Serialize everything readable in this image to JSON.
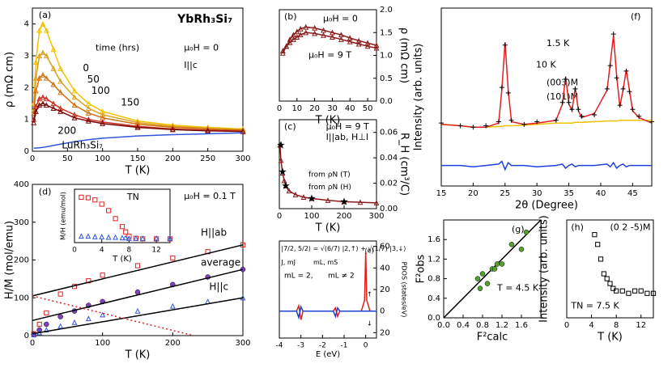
{
  "chart_data": [
    {
      "type": "line",
      "title": "YbRh₃Si₇",
      "xlabel": "T (K)",
      "ylabel": "ρ (mΩ cm)",
      "xlim": [
        0,
        300
      ],
      "ylim": [
        0,
        4.5
      ],
      "xticks": [
        0,
        50,
        100,
        150,
        200,
        250,
        300
      ],
      "yticks": [
        0,
        1,
        2,
        3,
        4
      ],
      "annotations": [
        "(a)",
        "time (hrs)",
        "μ₀H = 0",
        "I||c"
      ],
      "x": [
        2,
        5,
        10,
        15,
        20,
        30,
        40,
        60,
        80,
        100,
        150,
        200,
        250,
        300
      ],
      "series": [
        {
          "name": "0",
          "color": "#f2c200",
          "style": "line+markers",
          "marker": "triangle",
          "values": [
            1.5,
            2.8,
            3.8,
            4.0,
            3.8,
            3.2,
            2.6,
            1.9,
            1.5,
            1.25,
            0.95,
            0.82,
            0.75,
            0.7
          ]
        },
        {
          "name": "50",
          "color": "#d9a020",
          "style": "line+markers",
          "marker": "triangle",
          "values": [
            1.3,
            2.3,
            3.0,
            3.1,
            3.0,
            2.6,
            2.2,
            1.7,
            1.35,
            1.15,
            0.9,
            0.78,
            0.72,
            0.68
          ]
        },
        {
          "name": "100",
          "color": "#d07010",
          "style": "line+markers",
          "marker": "triangle",
          "values": [
            1.2,
            1.9,
            2.3,
            2.4,
            2.3,
            2.1,
            1.85,
            1.45,
            1.2,
            1.05,
            0.85,
            0.75,
            0.7,
            0.66
          ]
        },
        {
          "name": "150",
          "color": "#c83020",
          "style": "line+markers",
          "marker": "triangle",
          "values": [
            1.0,
            1.4,
            1.65,
            1.7,
            1.65,
            1.5,
            1.35,
            1.15,
            1.0,
            0.92,
            0.78,
            0.7,
            0.66,
            0.63
          ]
        },
        {
          "name": "200",
          "color": "#7a0a0a",
          "style": "line+markers",
          "marker": "triangle",
          "values": [
            0.9,
            1.25,
            1.45,
            1.5,
            1.45,
            1.35,
            1.25,
            1.05,
            0.95,
            0.87,
            0.75,
            0.68,
            0.64,
            0.62
          ]
        },
        {
          "name": "LuRh₃Si₇",
          "color": "#3355dd",
          "style": "line",
          "values": [
            0.1,
            0.1,
            0.11,
            0.12,
            0.14,
            0.18,
            0.22,
            0.3,
            0.36,
            0.41,
            0.48,
            0.52,
            0.55,
            0.58
          ]
        }
      ]
    },
    {
      "type": "line",
      "xlabel": "T (K)",
      "ylabel": "ρ (mΩ cm)",
      "y_axis_side": "right",
      "xlim": [
        0,
        55
      ],
      "ylim": [
        0,
        2.0
      ],
      "xticks": [
        0,
        10,
        20,
        30,
        40,
        50
      ],
      "yticks": [
        {
          "value": 0,
          "label": "0.0"
        },
        0.5,
        {
          "value": 1,
          "label": "1.0"
        },
        1.5,
        {
          "value": 2,
          "label": "2.0"
        }
      ],
      "annotations": [
        "(b)",
        "μ₀H = 0",
        "μ₀H = 9 T"
      ],
      "x": [
        2,
        4,
        6,
        8,
        10,
        12,
        15,
        20,
        25,
        30,
        35,
        40,
        45,
        50,
        55
      ],
      "series": [
        {
          "color": "#8b1a1a",
          "style": "line+markers",
          "marker": "triangle",
          "values": [
            1.05,
            1.2,
            1.35,
            1.45,
            1.52,
            1.58,
            1.62,
            1.6,
            1.55,
            1.5,
            1.45,
            1.38,
            1.32,
            1.27,
            1.22
          ]
        },
        {
          "color": "#8b1a1a",
          "style": "line+markers",
          "marker": "triangle",
          "values": [
            1.1,
            1.2,
            1.28,
            1.35,
            1.4,
            1.45,
            1.5,
            1.48,
            1.44,
            1.4,
            1.35,
            1.3,
            1.25,
            1.2,
            1.16
          ]
        }
      ]
    },
    {
      "type": "line",
      "xlabel": "T (K)",
      "ylabel": "R_H (cm³/C)",
      "y_axis_side": "right",
      "xlim": [
        0,
        300
      ],
      "ylim": [
        0,
        0.07
      ],
      "xticks": [
        0,
        100,
        200,
        300
      ],
      "yticks": [
        {
          "value": 0,
          "label": "0.00"
        },
        0.02,
        0.04,
        0.06
      ],
      "annotations": [
        "(c)",
        "μ₀H = 9 T",
        "I||ab, H⊥I"
      ],
      "series": [
        {
          "name": "from ρN (T)",
          "color": "#8b1a1a",
          "style": "line+markers",
          "marker": "triangle",
          "x": [
            2,
            5,
            10,
            15,
            20,
            30,
            50,
            75,
            100,
            150,
            200,
            250,
            300
          ],
          "values": [
            0.05,
            0.038,
            0.028,
            0.022,
            0.018,
            0.014,
            0.011,
            0.009,
            0.008,
            0.0065,
            0.0055,
            0.005,
            0.0045
          ]
        },
        {
          "name": "from ρN (H)",
          "color": "#000000",
          "style": "markers",
          "marker": "star",
          "x": [
            5,
            10,
            20,
            100,
            200
          ],
          "values": [
            0.05,
            0.029,
            0.018,
            0.008,
            0.0055
          ]
        }
      ]
    },
    {
      "type": "line",
      "xlabel": "T (K)",
      "ylabel": "H/M (mol/emu)",
      "xlim": [
        0,
        300
      ],
      "ylim": [
        0,
        400
      ],
      "xticks": [
        0,
        100,
        200,
        300
      ],
      "yticks": [
        0,
        100,
        200,
        300,
        400
      ],
      "annotations": [
        "(d)",
        "μ₀H = 0.1 T"
      ],
      "series": [
        {
          "name": "H||ab",
          "color": "#e02020",
          "style": "markers",
          "marker": "square",
          "x": [
            2,
            10,
            20,
            40,
            60,
            80,
            100,
            150,
            200,
            250,
            300
          ],
          "values": [
            5,
            30,
            60,
            110,
            130,
            145,
            160,
            185,
            205,
            222,
            240
          ]
        },
        {
          "name": "average",
          "color": "#8040c0",
          "style": "markers",
          "marker": "circle",
          "x": [
            2,
            10,
            20,
            40,
            60,
            80,
            100,
            150,
            200,
            250,
            300
          ],
          "values": [
            3,
            15,
            30,
            50,
            65,
            80,
            90,
            115,
            135,
            155,
            175
          ]
        },
        {
          "name": "H||c",
          "color": "#3355dd",
          "style": "markers",
          "marker": "triangle",
          "x": [
            2,
            10,
            20,
            40,
            60,
            80,
            100,
            150,
            200,
            250,
            300
          ],
          "values": [
            2,
            8,
            15,
            25,
            35,
            45,
            55,
            65,
            78,
            90,
            100
          ]
        },
        {
          "color": "#000000",
          "style": "line",
          "x": [
            0,
            300
          ],
          "values": [
            105,
            240
          ]
        },
        {
          "color": "#000000",
          "style": "line",
          "x": [
            0,
            300
          ],
          "values": [
            40,
            175
          ]
        },
        {
          "color": "#000000",
          "style": "line",
          "x": [
            0,
            300
          ],
          "values": [
            5,
            100
          ]
        },
        {
          "color": "#e02020",
          "style": "line",
          "dash": true,
          "x": [
            0,
            230
          ],
          "values": [
            105,
            0
          ]
        }
      ]
    },
    {
      "type": "line",
      "xlabel": "T (K)",
      "ylabel": "M/H (emu/mol)",
      "xlim": [
        0,
        14
      ],
      "ylim": [
        0,
        1
      ],
      "xticks": [
        0,
        4,
        8,
        12
      ],
      "annotations": [
        "TN"
      ],
      "x": [
        1,
        2,
        3,
        4,
        5,
        6,
        7,
        7.5,
        8,
        9,
        10,
        12,
        14
      ],
      "series": [
        {
          "color": "#e02020",
          "style": "markers",
          "marker": "square",
          "values": [
            0.85,
            0.84,
            0.8,
            0.72,
            0.6,
            0.45,
            0.3,
            0.2,
            0.12,
            0.08,
            0.07,
            0.07,
            0.07
          ]
        },
        {
          "color": "#3355dd",
          "style": "markers",
          "marker": "triangle",
          "values": [
            0.12,
            0.12,
            0.11,
            0.11,
            0.1,
            0.1,
            0.09,
            0.09,
            0.08,
            0.08,
            0.08,
            0.08,
            0.08
          ]
        }
      ]
    },
    {
      "type": "line",
      "xlabel": "E (eV)",
      "ylabel": "PDOS (states/eV)",
      "y_axis_side": "right",
      "xlim": [
        -4,
        0.5
      ],
      "ylim": [
        -25,
        65
      ],
      "xticks": [
        -4,
        -3,
        -2,
        -1,
        0
      ],
      "yticks": [
        {
          "value": -20,
          "label": "20"
        },
        0,
        20,
        40,
        60
      ],
      "annotations": [
        "(e)",
        "|7/2, 5/2⟩ = √(6/7) |2,↑⟩ + √(1/7) |3,↓⟩",
        "J, mJ",
        "mL, mS",
        "↑",
        "↓"
      ],
      "x": [
        -4,
        -3.2,
        -3.1,
        -3,
        -2.9,
        -2,
        -1.5,
        -1.4,
        -1.3,
        -1.2,
        -1,
        -0.2,
        -0.05,
        0,
        0.05,
        0.2,
        0.5
      ],
      "series": [
        {
          "name": "mL = 2,",
          "color": "#e02020",
          "style": "line",
          "values": [
            0,
            0,
            5,
            -8,
            0,
            0,
            0,
            3,
            -5,
            0,
            0,
            0,
            10,
            55,
            10,
            0,
            0
          ]
        },
        {
          "name": "mL ≠ 2",
          "color": "#2040d0",
          "style": "line",
          "values": [
            0,
            0,
            -6,
            4,
            0,
            0,
            0,
            -5,
            3,
            0,
            0,
            0,
            0,
            0,
            0,
            0,
            0
          ]
        }
      ]
    },
    {
      "type": "line",
      "xlabel": "2θ (Degree)",
      "ylabel": "Intensity (arb. units)",
      "xlim": [
        15,
        48
      ],
      "ylim": [
        -3,
        10
      ],
      "xticks": [
        15,
        20,
        25,
        30,
        35,
        40,
        45
      ],
      "annotations": [
        "(f)",
        "1.5 K",
        "10 K",
        "(003)M",
        "(101)M"
      ],
      "x": [
        15,
        18,
        20,
        22,
        24,
        24.5,
        25,
        25.5,
        26,
        28,
        30,
        33,
        34,
        34.5,
        35,
        35.5,
        36,
        36.5,
        37,
        39,
        41,
        41.5,
        42,
        42.5,
        43,
        43.5,
        44,
        44.5,
        45,
        46,
        48
      ],
      "series": [
        {
          "color": "#f0c000",
          "style": "line",
          "values": [
            1.5,
            1.4,
            1.3,
            1.3,
            1.35,
            1.35,
            1.4,
            1.4,
            1.4,
            1.45,
            1.5,
            1.6,
            1.6,
            1.6,
            1.6,
            1.6,
            1.65,
            1.65,
            1.65,
            1.7,
            1.75,
            1.75,
            1.75,
            1.75,
            1.8,
            1.8,
            1.8,
            1.8,
            1.8,
            1.8,
            1.8
          ]
        },
        {
          "color": "#e02020",
          "style": "line",
          "values": [
            1.5,
            1.4,
            1.3,
            1.3,
            1.6,
            4,
            7.5,
            4,
            1.7,
            1.5,
            1.6,
            1.8,
            3,
            5,
            3,
            2.5,
            4.2,
            2.5,
            2,
            2.3,
            4,
            6,
            8,
            5,
            2.8,
            4,
            5.5,
            4,
            2.5,
            2,
            1.6
          ]
        },
        {
          "color": "#000000",
          "style": "markers",
          "marker": "plus",
          "values": [
            1.6,
            1.4,
            1.3,
            1.4,
            1.7,
            4.2,
            7.3,
            3.8,
            1.8,
            1.5,
            1.7,
            1.8,
            3.1,
            4.8,
            3.1,
            2.6,
            4.1,
            2.6,
            2.1,
            2.2,
            4.1,
            5.8,
            8.1,
            4.9,
            2.9,
            4.1,
            5.4,
            3.9,
            2.6,
            2.1,
            1.7
          ]
        },
        {
          "color": "#2040e0",
          "style": "line",
          "values": [
            -1.5,
            -1.5,
            -1.6,
            -1.5,
            -1.4,
            -1.2,
            -1.8,
            -1.3,
            -1.5,
            -1.5,
            -1.6,
            -1.5,
            -1.4,
            -1.7,
            -1.5,
            -1.4,
            -1.6,
            -1.5,
            -1.5,
            -1.5,
            -1.4,
            -1.6,
            -1.3,
            -1.7,
            -1.5,
            -1.4,
            -1.6,
            -1.5,
            -1.5,
            -1.5,
            -1.5
          ]
        }
      ]
    },
    {
      "type": "scatter",
      "xlabel": "F²calc",
      "ylabel": "F²obs",
      "xlim": [
        0,
        2
      ],
      "ylim": [
        0,
        2
      ],
      "xticks": [
        {
          "value": 0,
          "label": "0.0"
        },
        0.4,
        0.8,
        1.2,
        1.6
      ],
      "yticks": [
        {
          "value": 0,
          "label": "0.0"
        },
        0.4,
        0.8,
        1.2,
        1.6
      ],
      "annotations": [
        "(g)",
        "T = 4.5 K"
      ],
      "series": [
        {
          "color": "#000000",
          "style": "line",
          "x": [
            0,
            2
          ],
          "values": [
            0,
            2
          ]
        },
        {
          "color": "#55a030",
          "style": "markers",
          "marker": "circle",
          "x": [
            0.7,
            0.75,
            0.8,
            0.9,
            1.0,
            1.05,
            1.1,
            1.2,
            1.4,
            1.6,
            1.7
          ],
          "values": [
            0.8,
            0.6,
            0.9,
            0.7,
            1.0,
            1.0,
            1.1,
            1.1,
            1.5,
            1.4,
            1.75
          ]
        }
      ]
    },
    {
      "type": "scatter",
      "xlabel": "T (K)",
      "ylabel": "Intensity (arb. units)",
      "xlim": [
        0,
        14
      ],
      "ylim": [
        0,
        2
      ],
      "xticks": [
        0,
        4,
        8,
        12
      ],
      "annotations": [
        "(h)",
        "(0 2 -5)M",
        "TN = 7.5 K"
      ],
      "series": [
        {
          "color": "#000000",
          "style": "markers",
          "marker": "square",
          "x": [
            4.5,
            5,
            5.5,
            6,
            6.5,
            7,
            7.5,
            8,
            9,
            10,
            11,
            12,
            13,
            14
          ],
          "values": [
            1.7,
            1.5,
            1.2,
            0.9,
            0.8,
            0.7,
            0.6,
            0.55,
            0.55,
            0.5,
            0.55,
            0.55,
            0.5,
            0.5
          ]
        }
      ]
    }
  ]
}
